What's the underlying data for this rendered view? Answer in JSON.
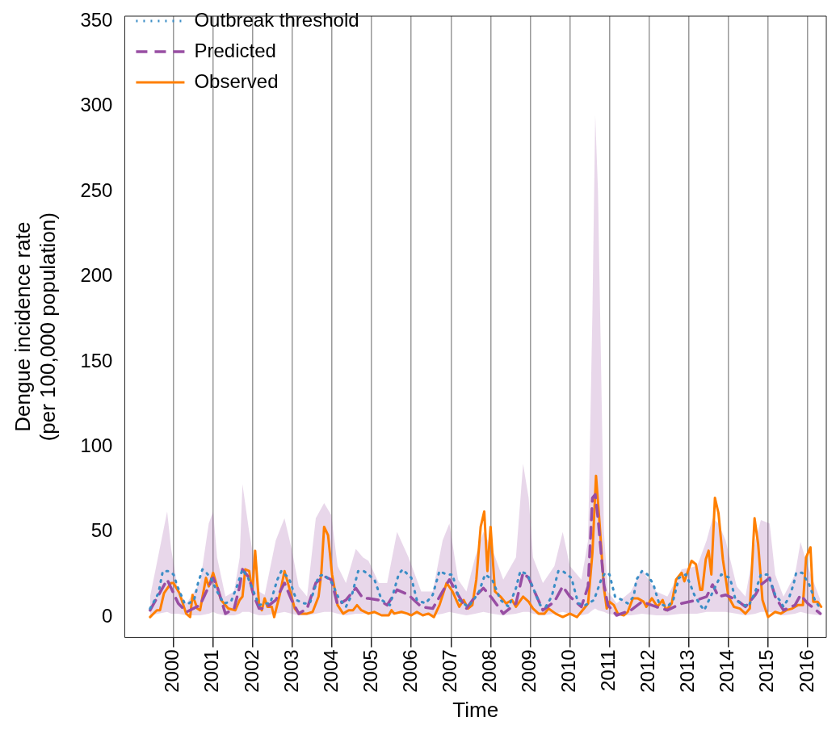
{
  "chart_data": {
    "type": "line",
    "xlabel": "Time",
    "ylabel": "Dengue incidence rate\n(per 100,000 population)",
    "xlim": [
      1998.77,
      2016.47
    ],
    "xticks": [
      2000,
      2001,
      2002,
      2003,
      2004,
      2005,
      2006,
      2007,
      2008,
      2009,
      2010,
      2011,
      2012,
      2013,
      2014,
      2015,
      2016
    ],
    "ylim": [
      -12,
      353
    ],
    "yticks": [
      0,
      50,
      100,
      150,
      200,
      250,
      300,
      350
    ],
    "grid": "x",
    "legend": "top left",
    "marker": "none",
    "series": [
      {
        "name": "Outbreak threshold",
        "color": "#3a8dc6",
        "line_style": "dotted",
        "x": [
          1999.41,
          1999.62,
          1999.73,
          1999.87,
          2000.0,
          2000.1,
          2000.28,
          2000.38,
          2000.52,
          2000.62,
          2000.73,
          2000.83,
          2000.94,
          2001.1,
          2001.27,
          2001.45,
          2001.6,
          2001.74,
          2001.88,
          2002.02,
          2002.16,
          2002.3,
          2002.44,
          2002.62,
          2002.72,
          2002.91,
          2003.1,
          2003.3,
          2003.44,
          2003.66,
          2003.8,
          2004.0,
          2004.17,
          2004.35,
          2004.5,
          2004.66,
          2004.8,
          2004.86,
          2005.07,
          2005.25,
          2005.46,
          2005.68,
          2005.78,
          2006.0,
          2006.14,
          2006.36,
          2006.54,
          2006.71,
          2006.89,
          2007.04,
          2007.21,
          2007.43,
          2007.57,
          2007.71,
          2007.86,
          2008.04,
          2008.25,
          2008.46,
          2008.64,
          2008.75,
          2008.93,
          2009.11,
          2009.25,
          2009.39,
          2009.54,
          2009.71,
          2009.82,
          2010.04,
          2010.21,
          2010.39,
          2010.61,
          2010.79,
          2010.89,
          2011.0,
          2011.14,
          2011.32,
          2011.46,
          2011.61,
          2011.68,
          2011.82,
          2011.96,
          2012.11,
          2012.25,
          2012.46,
          2012.61,
          2012.75,
          2012.93,
          2013.04,
          2013.14,
          2013.29,
          2013.39,
          2013.61,
          2013.82,
          2014.04,
          2014.18,
          2014.32,
          2014.5,
          2014.68,
          2014.82,
          2015.0,
          2015.18,
          2015.29,
          2015.39,
          2015.54,
          2015.64,
          2015.71,
          2015.86,
          2016.04,
          2016.18,
          2016.32
        ],
        "values": [
          5,
          14,
          27,
          27,
          25,
          18,
          8,
          8,
          10,
          20,
          28,
          26,
          23,
          15,
          8,
          9,
          18,
          28,
          23,
          15,
          7,
          8,
          8,
          22,
          27,
          23,
          10,
          8,
          8,
          24,
          25,
          20,
          11,
          6,
          13,
          27,
          27,
          26,
          22,
          10,
          7,
          25,
          28,
          23,
          10,
          8,
          13,
          27,
          25,
          25,
          10,
          6,
          10,
          15,
          25,
          22,
          10,
          6,
          17,
          27,
          25,
          15,
          7,
          6,
          12,
          27,
          27,
          23,
          8,
          7,
          10,
          22,
          26,
          25,
          12,
          10,
          8,
          12,
          22,
          27,
          25,
          19,
          8,
          6,
          10,
          23,
          25,
          19,
          13,
          7,
          4,
          15,
          25,
          23,
          10,
          8,
          6,
          15,
          25,
          25,
          13,
          10,
          6,
          12,
          19,
          26,
          26,
          19,
          10,
          5
        ]
      },
      {
        "name": "Predicted",
        "color": "#984ea3",
        "line_style": "dashed",
        "x": [
          1999.41,
          1999.84,
          1999.94,
          2000.12,
          2000.33,
          2000.67,
          2000.89,
          2001.0,
          2001.1,
          2001.31,
          2001.53,
          2001.67,
          2001.74,
          2001.91,
          2002.02,
          2002.16,
          2002.3,
          2002.58,
          2002.8,
          2002.98,
          2003.16,
          2003.37,
          2003.59,
          2003.8,
          2003.98,
          2004.14,
          2004.35,
          2004.6,
          2004.78,
          2004.92,
          2005.18,
          2005.39,
          2005.64,
          2005.93,
          2006.25,
          2006.54,
          2006.79,
          2006.96,
          2007.18,
          2007.39,
          2007.61,
          2007.82,
          2008.04,
          2008.32,
          2008.64,
          2008.82,
          2008.96,
          2009.07,
          2009.32,
          2009.61,
          2009.82,
          2010.0,
          2010.29,
          2010.46,
          2010.57,
          2010.64,
          2010.71,
          2010.86,
          2010.96,
          2011.18,
          2011.54,
          2011.82,
          2012.18,
          2012.46,
          2012.82,
          2013.21,
          2013.45,
          2013.6,
          2013.75,
          2013.93,
          2014.21,
          2014.43,
          2014.68,
          2014.82,
          2015.04,
          2015.18,
          2015.39,
          2015.68,
          2015.82,
          2016.0,
          2016.32
        ],
        "values": [
          4,
          22,
          17,
          8,
          3,
          7,
          18,
          23,
          18,
          2,
          5,
          18,
          28,
          23,
          13,
          5,
          5,
          10,
          20,
          10,
          2,
          5,
          20,
          24,
          22,
          7,
          10,
          17,
          11,
          11,
          10,
          7,
          16,
          13,
          6,
          5,
          15,
          22,
          13,
          5,
          12,
          17,
          11,
          2,
          8,
          26,
          23,
          17,
          4,
          9,
          18,
          12,
          6,
          18,
          70,
          72,
          58,
          19,
          7,
          1,
          4,
          9,
          6,
          4,
          8,
          10,
          12,
          19,
          12,
          13,
          10,
          6,
          13,
          19,
          23,
          12,
          4,
          7,
          13,
          8,
          2
        ],
        "lower": [
          1,
          3,
          2,
          2,
          1,
          1,
          2,
          3,
          2,
          1,
          1,
          2,
          3,
          3,
          2,
          1,
          1,
          2,
          3,
          2,
          1,
          1,
          2,
          3,
          3,
          2,
          1,
          2,
          2,
          2,
          2,
          1,
          2,
          2,
          1,
          1,
          2,
          3,
          2,
          1,
          2,
          3,
          2,
          1,
          2,
          3,
          3,
          2,
          1,
          2,
          3,
          2,
          1,
          2,
          4,
          5,
          4,
          3,
          2,
          1,
          1,
          2,
          1,
          1,
          2,
          2,
          3,
          3,
          3,
          3,
          2,
          1,
          2,
          3,
          3,
          2,
          1,
          2,
          3,
          2,
          1
        ],
        "upper": [
          12,
          62,
          40,
          15,
          8,
          20,
          55,
          62,
          35,
          12,
          15,
          35,
          78,
          50,
          35,
          15,
          13,
          45,
          58,
          40,
          18,
          12,
          58,
          67,
          60,
          30,
          20,
          40,
          35,
          33,
          20,
          20,
          50,
          35,
          15,
          15,
          45,
          55,
          22,
          15,
          35,
          50,
          40,
          22,
          35,
          90,
          70,
          35,
          20,
          30,
          50,
          30,
          22,
          45,
          180,
          295,
          250,
          50,
          15,
          8,
          15,
          28,
          15,
          12,
          28,
          30,
          45,
          58,
          55,
          45,
          18,
          12,
          45,
          57,
          55,
          25,
          12,
          25,
          44,
          30,
          10
        ]
      },
      {
        "name": "Observed",
        "color": "#ff7f00",
        "line_style": "solid",
        "x": [
          1999.41,
          1999.58,
          1999.66,
          1999.76,
          1999.94,
          2000.0,
          2000.15,
          2000.32,
          2000.42,
          2000.48,
          2000.6,
          2000.67,
          2000.82,
          2000.89,
          2001.0,
          2001.1,
          2001.2,
          2001.38,
          2001.56,
          2001.67,
          2001.74,
          2001.81,
          2001.91,
          2001.99,
          2002.06,
          2002.16,
          2002.23,
          2002.3,
          2002.37,
          2002.48,
          2002.54,
          2002.68,
          2002.8,
          2002.91,
          2003.06,
          2003.16,
          2003.3,
          2003.37,
          2003.51,
          2003.66,
          2003.73,
          2003.8,
          2003.9,
          2004.0,
          2004.14,
          2004.28,
          2004.42,
          2004.53,
          2004.63,
          2004.74,
          2004.92,
          2005.07,
          2005.25,
          2005.43,
          2005.5,
          2005.57,
          2005.75,
          2005.9,
          2006.0,
          2006.14,
          2006.29,
          2006.43,
          2006.57,
          2006.71,
          2006.89,
          2007.04,
          2007.21,
          2007.32,
          2007.43,
          2007.54,
          2007.64,
          2007.75,
          2007.84,
          2007.92,
          2008.0,
          2008.11,
          2008.25,
          2008.39,
          2008.54,
          2008.64,
          2008.82,
          2008.96,
          2009.07,
          2009.21,
          2009.36,
          2009.46,
          2009.64,
          2009.82,
          2010.0,
          2010.18,
          2010.32,
          2010.46,
          2010.57,
          2010.66,
          2010.75,
          2010.86,
          2010.93,
          2011.0,
          2011.11,
          2011.21,
          2011.36,
          2011.46,
          2011.59,
          2011.71,
          2011.86,
          2011.93,
          2012.07,
          2012.21,
          2012.34,
          2012.43,
          2012.57,
          2012.68,
          2012.82,
          2012.89,
          2013.07,
          2013.18,
          2013.29,
          2013.34,
          2013.43,
          2013.5,
          2013.57,
          2013.66,
          2013.75,
          2013.86,
          2014.0,
          2014.14,
          2014.29,
          2014.43,
          2014.54,
          2014.66,
          2014.75,
          2014.86,
          2015.0,
          2015.18,
          2015.32,
          2015.46,
          2015.61,
          2015.75,
          2015.88,
          2015.96,
          2016.07,
          2016.14,
          2016.25,
          2016.34
        ],
        "values": [
          0,
          4,
          4,
          14,
          20,
          20,
          14,
          2,
          0,
          13,
          5,
          4,
          23,
          18,
          26,
          18,
          10,
          5,
          4,
          10,
          12,
          28,
          27,
          15,
          39,
          7,
          4,
          11,
          6,
          6,
          0,
          13,
          27,
          18,
          5,
          2,
          2,
          2,
          3,
          12,
          26,
          53,
          48,
          25,
          7,
          2,
          4,
          4,
          7,
          4,
          2,
          3,
          1,
          1,
          4,
          2,
          3,
          2,
          1,
          3,
          1,
          2,
          0,
          7,
          20,
          15,
          6,
          10,
          5,
          7,
          22,
          53,
          62,
          27,
          53,
          15,
          12,
          8,
          10,
          6,
          12,
          9,
          5,
          2,
          2,
          5,
          2,
          0,
          2,
          0,
          4,
          8,
          38,
          83,
          55,
          17,
          5,
          9,
          7,
          2,
          1,
          3,
          11,
          11,
          9,
          6,
          11,
          6,
          10,
          4,
          8,
          22,
          26,
          21,
          33,
          31,
          16,
          16,
          34,
          39,
          25,
          70,
          61,
          34,
          12,
          6,
          5,
          2,
          5,
          58,
          43,
          10,
          0,
          3,
          2,
          4,
          5,
          7,
          7,
          35,
          41,
          9,
          9,
          6
        ]
      }
    ]
  }
}
